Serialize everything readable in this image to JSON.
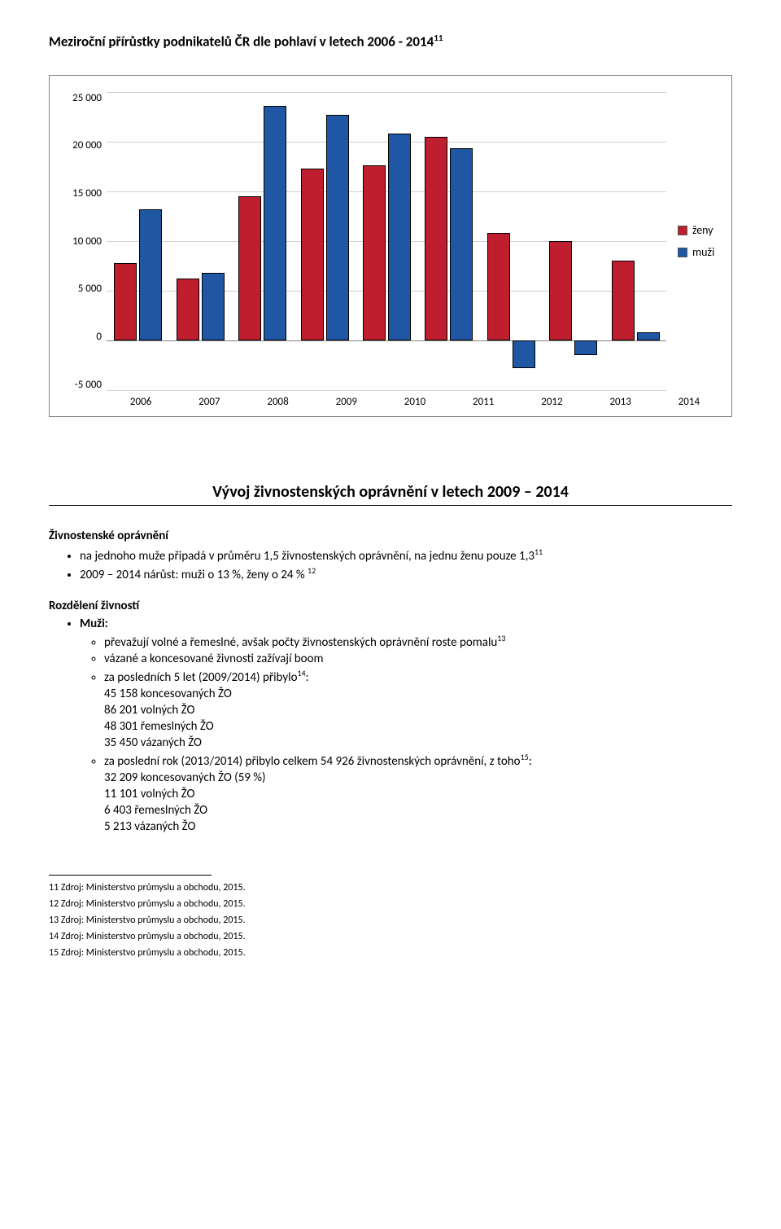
{
  "title": "Meziroční přírůstky podnikatelů ČR dle pohlaví v letech 2006 - 2014",
  "title_sup": "11",
  "chart": {
    "type": "bar",
    "y_ticks": [
      "25 000",
      "20 000",
      "15 000",
      "10 000",
      "5 000",
      "0",
      "-5 000"
    ],
    "y_min": -5000,
    "y_max": 25000,
    "categories": [
      "2006",
      "2007",
      "2008",
      "2009",
      "2010",
      "2011",
      "2012",
      "2013",
      "2014"
    ],
    "series": [
      {
        "label": "ženy",
        "color": "#be1e2d",
        "values": [
          7800,
          6200,
          14500,
          17300,
          17600,
          20500,
          10800,
          10000,
          8000
        ]
      },
      {
        "label": "muži",
        "color": "#1f57a5",
        "values": [
          13200,
          6800,
          23600,
          22700,
          20800,
          19300,
          -2800,
          -1500,
          800
        ]
      }
    ],
    "bar_border": "#000000",
    "grid_color": "#d0d0d0",
    "axis_color": "#808080",
    "tick_fontsize": 13,
    "legend_fontsize": 14
  },
  "section_title": "Vývoj živnostenských oprávnění v letech 2009 – 2014",
  "headings": {
    "h1": "Živnostenské oprávnění",
    "h2": "Rozdělení živností",
    "h2a": "Muži:"
  },
  "bullets1": {
    "b1_pre": "na jednoho muže připadá v průměru 1,5 živnostenských oprávnění, na jednu ženu pouze 1,3",
    "b1_sup": "11",
    "b2_pre": "2009 – 2014 nárůst: muži o 13 %, ženy o 24 % ",
    "b2_sup": "12"
  },
  "bullets2": {
    "c1_pre": "převažují volné a řemeslné, avšak počty živnostenských oprávnění roste pomalu",
    "c1_sup": "13",
    "c2": "vázané a koncesované živnosti zažívají boom",
    "c3_pre": "za posledních 5 let (2009/2014) přibylo",
    "c3_sup": "14",
    "c3_post": ":",
    "c3_1": "45 158 koncesovaných ŽO",
    "c3_2": "86 201 volných ŽO",
    "c3_3": "48 301 řemeslných ŽO",
    "c3_4": "35 450 vázaných ŽO",
    "c4_pre": "za poslední rok (2013/2014) přibylo celkem 54 926 živnostenských oprávnění, z toho",
    "c4_sup": "15",
    "c4_post": ":",
    "c4_1": "32 209 koncesovaných ŽO (59 %)",
    "c4_2": "11 101 volných ŽO",
    "c4_3": "6 403 řemeslných ŽO",
    "c4_4": "5 213 vázaných ŽO"
  },
  "footnotes": {
    "f11": "11 Zdroj: Ministerstvo průmyslu a obchodu, 2015.",
    "f12": "12 Zdroj: Ministerstvo průmyslu a obchodu, 2015.",
    "f13": "13 Zdroj: Ministerstvo průmyslu a obchodu, 2015.",
    "f14": "14 Zdroj: Ministerstvo průmyslu a obchodu, 2015.",
    "f15": "15 Zdroj: Ministerstvo průmyslu a obchodu, 2015."
  }
}
